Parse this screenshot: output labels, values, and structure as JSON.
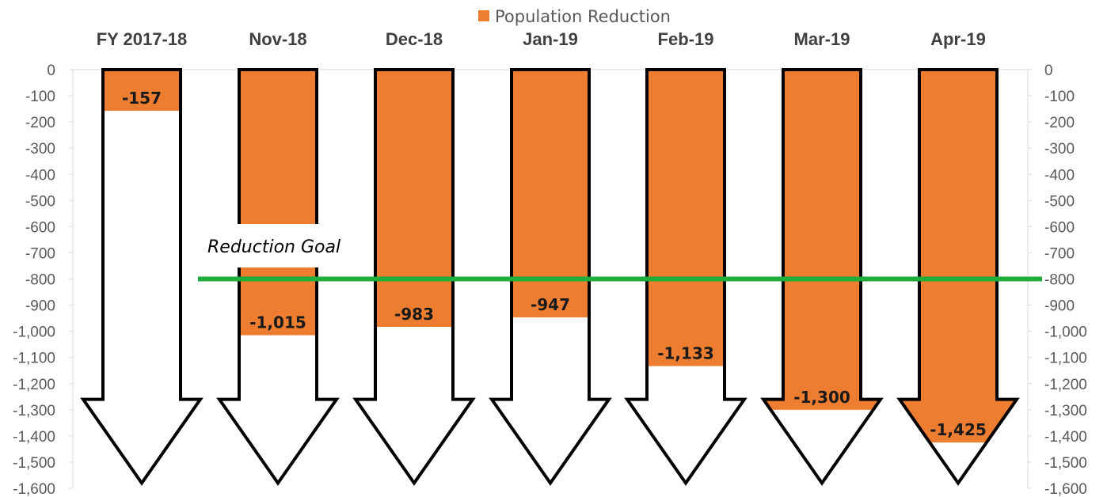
{
  "chart_data": {
    "type": "bar",
    "categories": [
      "FY 2017-18",
      "Nov-18",
      "Dec-18",
      "Jan-19",
      "Feb-19",
      "Mar-19",
      "Apr-19"
    ],
    "series": [
      {
        "name": "Population Reduction",
        "values": [
          -157,
          -1015,
          -983,
          -947,
          -1133,
          -1300,
          -1425
        ]
      }
    ],
    "data_labels": [
      "-157",
      "-1,015",
      "-983",
      "-947",
      "-1,133",
      "-1,300",
      "-1,425"
    ],
    "yticks": [
      0,
      -100,
      -200,
      -300,
      -400,
      -500,
      -600,
      -700,
      -800,
      -900,
      -1000,
      -1100,
      -1200,
      -1300,
      -1400,
      -1500,
      -1600
    ],
    "ytick_labels": [
      "0",
      "-100",
      "-200",
      "-300",
      "-400",
      "-500",
      "-600",
      "-700",
      "-800",
      "-900",
      "-1,000",
      "-1,100",
      "-1,200",
      "-1,300",
      "-1,400",
      "-1,500",
      "-1,600"
    ],
    "ylim": [
      -1600,
      0
    ],
    "secondary_axis": true,
    "grid": false,
    "legend_position": "top",
    "category_axis_position": "top",
    "mark_shape": "down-arrow",
    "goal_line": {
      "value": -800,
      "label": "Reduction Goal",
      "color": "#1fae3c"
    },
    "colors": {
      "bar": "#ed7d31",
      "arrow_outline": "#000000",
      "arrow_fill": "#ffffff",
      "goal": "#1fae3c",
      "axis": "#d9d9d9"
    }
  }
}
